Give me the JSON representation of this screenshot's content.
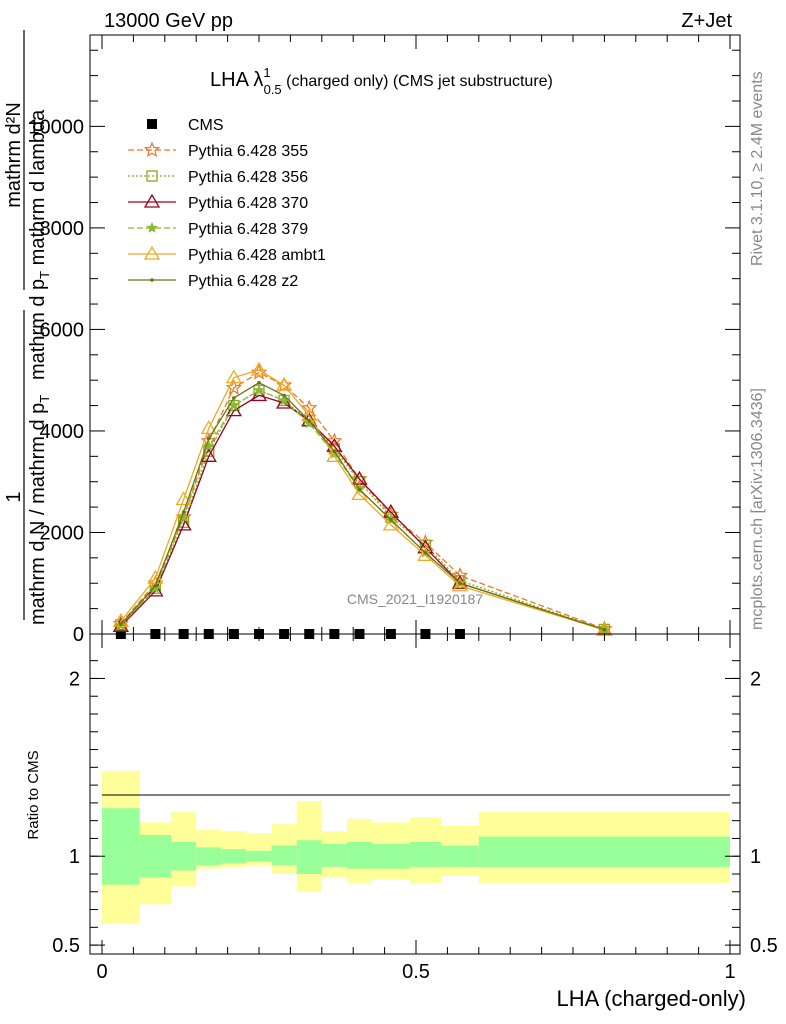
{
  "header": {
    "left": "13000 GeV pp",
    "right": "Z+Jet"
  },
  "side": {
    "rivet": "Rivet 3.1.10, ≥ 2.4M events",
    "mcplots": "mcplots.cern.ch [arXiv:1306.3436]"
  },
  "watermark": "CMS_2021_I1920187",
  "colors": {
    "cms": "#000000",
    "p355": "#ee7722",
    "p356": "#88aa22",
    "p370": "#990022",
    "p379": "#88bb33",
    "ambt1": "#eeaa22",
    "z2": "#667711",
    "band_inner": "#99ff99",
    "band_outer": "#ffff99"
  },
  "chart_data": [
    {
      "type": "line",
      "title": "LHA λ",
      "title_sup": "1",
      "title_sub": "0.5",
      "title_suffix": " (charged only) (CMS jet substructure)",
      "ylabel": {
        "prefix": "1",
        "frac_denominator": "mathrm d N / mathrm d p",
        "frac_sub": "T",
        "numerator": "mathrm d²N",
        "denominator": "mathrm d p",
        "denominator_sub": "T",
        "denominator_suffix": " mathrm d lambda"
      },
      "xlim": [
        0,
        1
      ],
      "ylim": [
        0,
        11800
      ],
      "yticks": [
        0,
        2000,
        4000,
        6000,
        8000,
        10000
      ],
      "ytick_labels": [
        "0",
        "2000",
        "4000",
        "6000",
        "8000",
        "10000"
      ],
      "legend_position": "top-left",
      "x": [
        0.03,
        0.085,
        0.13,
        0.17,
        0.21,
        0.25,
        0.29,
        0.33,
        0.37,
        0.41,
        0.46,
        0.515,
        0.57,
        0.8
      ],
      "series": [
        {
          "name": "CMS",
          "marker": "square",
          "values": [
            0,
            0,
            0,
            0,
            0,
            0,
            0,
            0,
            0,
            0,
            0,
            0,
            0,
            0
          ]
        },
        {
          "name": "Pythia 6.428 355",
          "marker": "star",
          "dashed": true,
          "values": [
            200,
            1000,
            2300,
            3800,
            4850,
            5150,
            4900,
            4450,
            3800,
            3050,
            2350,
            1800,
            1150,
            100
          ]
        },
        {
          "name": "Pythia 6.428 356",
          "marker": "open-square",
          "dotted": true,
          "values": [
            180,
            900,
            2200,
            3600,
            4500,
            4800,
            4600,
            4200,
            3650,
            3000,
            2300,
            1750,
            1050,
            90
          ]
        },
        {
          "name": "Pythia 6.428 370",
          "marker": "open-triangle",
          "values": [
            150,
            850,
            2150,
            3500,
            4400,
            4700,
            4550,
            4200,
            3700,
            3050,
            2400,
            1700,
            1000,
            80
          ]
        },
        {
          "name": "Pythia 6.428 379",
          "marker": "small-star",
          "dashed": true,
          "values": [
            170,
            900,
            2300,
            3700,
            4500,
            4800,
            4600,
            4150,
            3550,
            2850,
            2250,
            1600,
            1000,
            85
          ]
        },
        {
          "name": "Pythia 6.428 ambt1",
          "marker": "open-triangle",
          "values": [
            250,
            1100,
            2650,
            4050,
            5050,
            5200,
            4900,
            4300,
            3500,
            2750,
            2150,
            1550,
            950,
            80
          ]
        },
        {
          "name": "Pythia 6.428 z2",
          "marker": "dot",
          "values": [
            190,
            950,
            2400,
            3850,
            4650,
            4950,
            4700,
            4200,
            3600,
            2850,
            2250,
            1600,
            1000,
            85
          ]
        }
      ]
    },
    {
      "type": "area",
      "ylabel": "Ratio to CMS",
      "xlabel": "LHA (charged-only)",
      "xlim": [
        0,
        1
      ],
      "ylim": [
        0.45,
        2.25
      ],
      "yticks": [
        0.5,
        1,
        2
      ],
      "ytick_labels": [
        "0.5",
        "1",
        "2"
      ],
      "xticks": [
        0,
        0.5,
        1
      ],
      "xtick_labels": [
        "0",
        "0.5",
        "1"
      ],
      "bins": [
        {
          "lo": 0.0,
          "hi": 0.06,
          "inner": [
            0.84,
            1.27
          ],
          "outer": [
            0.62,
            1.48
          ]
        },
        {
          "lo": 0.06,
          "hi": 0.11,
          "inner": [
            0.88,
            1.12
          ],
          "outer": [
            0.73,
            1.19
          ]
        },
        {
          "lo": 0.11,
          "hi": 0.15,
          "inner": [
            0.92,
            1.08
          ],
          "outer": [
            0.83,
            1.25
          ]
        },
        {
          "lo": 0.15,
          "hi": 0.19,
          "inner": [
            0.95,
            1.05
          ],
          "outer": [
            0.93,
            1.15
          ]
        },
        {
          "lo": 0.19,
          "hi": 0.23,
          "inner": [
            0.96,
            1.04
          ],
          "outer": [
            0.94,
            1.14
          ]
        },
        {
          "lo": 0.23,
          "hi": 0.27,
          "inner": [
            0.97,
            1.03
          ],
          "outer": [
            0.95,
            1.13
          ]
        },
        {
          "lo": 0.27,
          "hi": 0.31,
          "inner": [
            0.95,
            1.06
          ],
          "outer": [
            0.9,
            1.18
          ]
        },
        {
          "lo": 0.31,
          "hi": 0.35,
          "inner": [
            0.9,
            1.09
          ],
          "outer": [
            0.8,
            1.31
          ]
        },
        {
          "lo": 0.35,
          "hi": 0.39,
          "inner": [
            0.94,
            1.07
          ],
          "outer": [
            0.88,
            1.14
          ]
        },
        {
          "lo": 0.39,
          "hi": 0.43,
          "inner": [
            0.93,
            1.08
          ],
          "outer": [
            0.85,
            1.21
          ]
        },
        {
          "lo": 0.43,
          "hi": 0.49,
          "inner": [
            0.93,
            1.07
          ],
          "outer": [
            0.87,
            1.19
          ]
        },
        {
          "lo": 0.49,
          "hi": 0.54,
          "inner": [
            0.94,
            1.08
          ],
          "outer": [
            0.85,
            1.22
          ]
        },
        {
          "lo": 0.54,
          "hi": 0.6,
          "inner": [
            0.94,
            1.06
          ],
          "outer": [
            0.89,
            1.17
          ]
        },
        {
          "lo": 0.6,
          "hi": 1.0,
          "inner": [
            0.94,
            1.11
          ],
          "outer": [
            0.85,
            1.25
          ]
        }
      ]
    }
  ]
}
